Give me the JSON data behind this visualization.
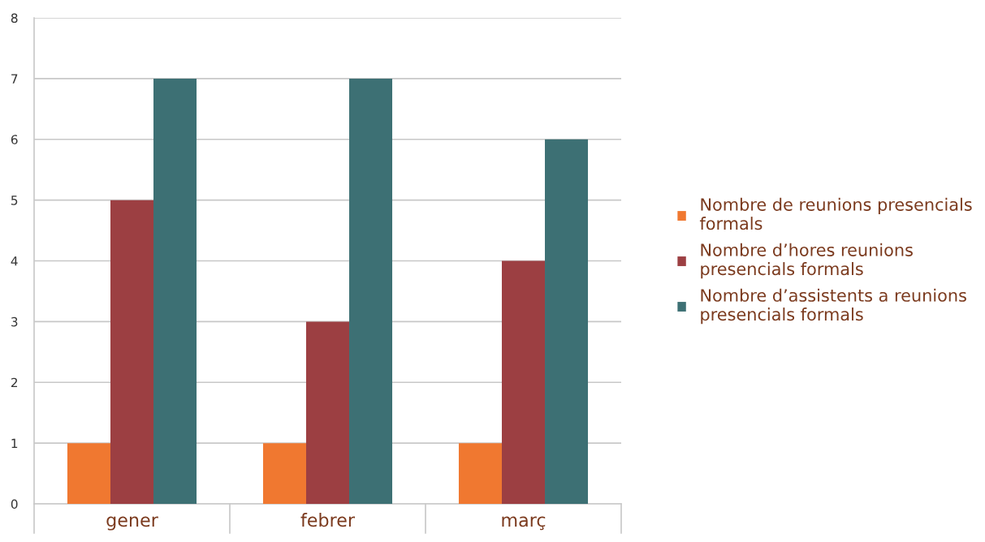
{
  "chart_data": {
    "type": "bar",
    "categories": [
      "gener",
      "febrer",
      "març"
    ],
    "series": [
      {
        "name": "Nombre de reunions presencials\nformals",
        "color": "#f07830",
        "values": [
          1,
          1,
          1
        ]
      },
      {
        "name": "Nombre d’hores reunions\npresencials formals",
        "color": "#9c3f42",
        "values": [
          5,
          3,
          4
        ]
      },
      {
        "name": "Nombre d’assistents a reunions\npresencials formals",
        "color": "#3d7074",
        "values": [
          7,
          7,
          6
        ]
      }
    ],
    "ylim": [
      0,
      8
    ],
    "yticks": [
      0,
      1,
      2,
      3,
      4,
      5,
      6,
      7,
      8
    ],
    "grid": "y",
    "legend": "right"
  }
}
